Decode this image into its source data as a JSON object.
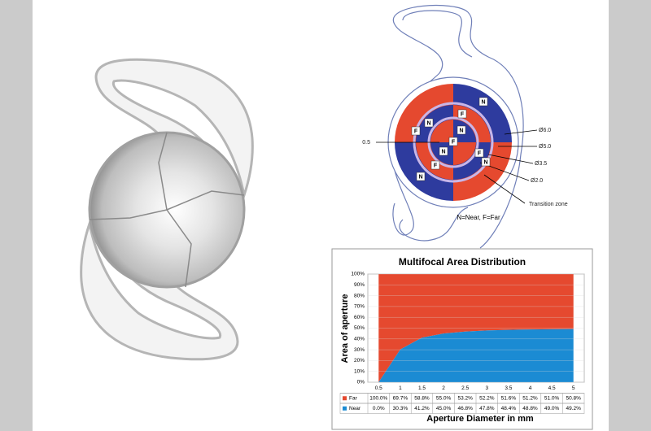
{
  "diagram": {
    "zone_labels": [
      "F",
      "N",
      "F",
      "N",
      "N",
      "F",
      "N",
      "F",
      "F",
      "N",
      "N"
    ],
    "callouts": [
      "Ø6.0",
      "Ø5.0",
      "Ø3.5",
      "Ø2.0",
      "0.5",
      "Transition zone"
    ],
    "legend": "N=Near, F=Far"
  },
  "chart_data": {
    "type": "stacked-area",
    "title": "Multifocal Area Distribution",
    "y_label": "Area of aperture",
    "x_label": "Aperture Diameter in mm",
    "categories": [
      "0.5",
      "1",
      "1.5",
      "2",
      "2.5",
      "3",
      "3.5",
      "4",
      "4.5",
      "5"
    ],
    "ylim": [
      0,
      100
    ],
    "yticks": [
      {
        "value": 0,
        "label": "0%"
      },
      {
        "value": 10,
        "label": "10%"
      },
      {
        "value": 20,
        "label": "20%"
      },
      {
        "value": 30,
        "label": "30%"
      },
      {
        "value": 40,
        "label": "40%"
      },
      {
        "value": 50,
        "label": "50%"
      },
      {
        "value": 60,
        "label": "60%"
      },
      {
        "value": 70,
        "label": "70%"
      },
      {
        "value": 80,
        "label": "80%"
      },
      {
        "value": 90,
        "label": "90%"
      },
      {
        "value": 100,
        "label": "100%"
      }
    ],
    "grid": true,
    "series": [
      {
        "name": "Far",
        "color": "#e5492f",
        "values": [
          100.0,
          69.7,
          58.8,
          55.0,
          53.2,
          52.2,
          51.6,
          51.2,
          51.0,
          50.8
        ],
        "value_labels": [
          "100.0%",
          "69.7%",
          "58.8%",
          "55.0%",
          "53.2%",
          "52.2%",
          "51.6%",
          "51.2%",
          "51.0%",
          "50.8%"
        ]
      },
      {
        "name": "Near",
        "color": "#1b8bd3",
        "values": [
          0.0,
          30.3,
          41.2,
          45.0,
          46.8,
          47.8,
          48.4,
          48.8,
          49.0,
          49.2
        ],
        "value_labels": [
          "0.0%",
          "30.3%",
          "41.2%",
          "45.0%",
          "46.8%",
          "47.8%",
          "48.4%",
          "48.8%",
          "49.0%",
          "49.2%"
        ]
      }
    ]
  }
}
